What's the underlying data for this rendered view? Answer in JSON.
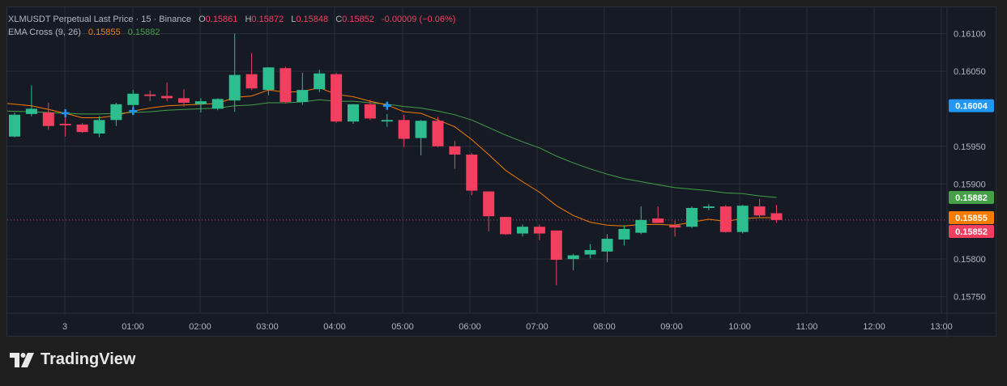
{
  "legend": {
    "symbol_line": "XLMUSDT Perpetual Last Price · 15 · Binance",
    "o_label": "O",
    "o_value": "0.15861",
    "h_label": "H",
    "h_value": "0.15872",
    "l_label": "L",
    "l_value": "0.15848",
    "c_label": "C",
    "c_value": "0.15852",
    "change": "-0.00009 (−0.06%)",
    "ema_label": "EMA Cross (9, 26)",
    "ema_fast_value": "0.15855",
    "ema_slow_value": "0.15882"
  },
  "brand": {
    "name": "TradingView"
  },
  "colors": {
    "up": "#26a69a",
    "up_body": "#2dbd8f",
    "down": "#f23f5f",
    "ema_fast": "#f57c00",
    "ema_slow": "#43a047",
    "last_price_badge": "#2196f3",
    "grid": "#2a2e39",
    "text": "#b2b5be"
  },
  "chart_data": {
    "type": "candlestick",
    "symbol": "XLMUSDT Perpetual",
    "interval": "15",
    "exchange": "Binance",
    "ylim": [
      0.15728,
      0.16135
    ],
    "y_ticks": [
      "0.16100",
      "0.16050",
      "0.15950",
      "0.15900",
      "0.15800",
      "0.15750"
    ],
    "x_ticks": [
      "3",
      "01:00",
      "02:00",
      "03:00",
      "04:00",
      "05:00",
      "06:00",
      "07:00",
      "08:00",
      "09:00",
      "10:00",
      "11:00",
      "12:00",
      "13:00"
    ],
    "price_badges": [
      {
        "label": "0.16004",
        "value": 0.16004,
        "color": "#2196f3"
      },
      {
        "label": "0.15882",
        "value": 0.15882,
        "color": "#43a047"
      },
      {
        "label": "0.15855",
        "value": 0.15855,
        "color": "#f57c00"
      },
      {
        "label": "0.15852",
        "value": 0.15852,
        "color": "#f23f5f"
      }
    ],
    "last_price": 0.15852,
    "candles": [
      {
        "o": 0.15963,
        "h": 0.15995,
        "l": 0.15962,
        "c": 0.15992
      },
      {
        "o": 0.15993,
        "h": 0.16031,
        "l": 0.1599,
        "c": 0.16
      },
      {
        "o": 0.15995,
        "h": 0.16008,
        "l": 0.15972,
        "c": 0.15977
      },
      {
        "o": 0.1598,
        "h": 0.15994,
        "l": 0.15963,
        "c": 0.15978
      },
      {
        "o": 0.15979,
        "h": 0.15981,
        "l": 0.15968,
        "c": 0.15969
      },
      {
        "o": 0.15967,
        "h": 0.1599,
        "l": 0.15962,
        "c": 0.15985
      },
      {
        "o": 0.15985,
        "h": 0.16008,
        "l": 0.15977,
        "c": 0.16006
      },
      {
        "o": 0.16005,
        "h": 0.16025,
        "l": 0.16,
        "c": 0.1602
      },
      {
        "o": 0.16019,
        "h": 0.16024,
        "l": 0.1601,
        "c": 0.16017
      },
      {
        "o": 0.16017,
        "h": 0.16035,
        "l": 0.1601,
        "c": 0.16014
      },
      {
        "o": 0.16014,
        "h": 0.16026,
        "l": 0.16003,
        "c": 0.16008
      },
      {
        "o": 0.16006,
        "h": 0.16014,
        "l": 0.15995,
        "c": 0.1601
      },
      {
        "o": 0.16,
        "h": 0.16014,
        "l": 0.15998,
        "c": 0.16013
      },
      {
        "o": 0.16011,
        "h": 0.161,
        "l": 0.15996,
        "c": 0.16045
      },
      {
        "o": 0.16046,
        "h": 0.16074,
        "l": 0.16025,
        "c": 0.16027
      },
      {
        "o": 0.16025,
        "h": 0.16055,
        "l": 0.16018,
        "c": 0.16055
      },
      {
        "o": 0.16054,
        "h": 0.16056,
        "l": 0.16007,
        "c": 0.16009
      },
      {
        "o": 0.16009,
        "h": 0.16048,
        "l": 0.16005,
        "c": 0.16025
      },
      {
        "o": 0.16026,
        "h": 0.16052,
        "l": 0.16022,
        "c": 0.16047
      },
      {
        "o": 0.16046,
        "h": 0.16048,
        "l": 0.15981,
        "c": 0.15983
      },
      {
        "o": 0.15983,
        "h": 0.16006,
        "l": 0.1598,
        "c": 0.16006
      },
      {
        "o": 0.16006,
        "h": 0.16012,
        "l": 0.15985,
        "c": 0.15987
      },
      {
        "o": 0.15983,
        "h": 0.15993,
        "l": 0.15976,
        "c": 0.15985
      },
      {
        "o": 0.15985,
        "h": 0.15992,
        "l": 0.15949,
        "c": 0.1596
      },
      {
        "o": 0.15961,
        "h": 0.15985,
        "l": 0.15938,
        "c": 0.15984
      },
      {
        "o": 0.15984,
        "h": 0.15989,
        "l": 0.15949,
        "c": 0.1595
      },
      {
        "o": 0.1595,
        "h": 0.15957,
        "l": 0.1592,
        "c": 0.15939
      },
      {
        "o": 0.15939,
        "h": 0.15941,
        "l": 0.15885,
        "c": 0.15891
      },
      {
        "o": 0.1589,
        "h": 0.1589,
        "l": 0.15837,
        "c": 0.15857
      },
      {
        "o": 0.15856,
        "h": 0.15856,
        "l": 0.15832,
        "c": 0.15833
      },
      {
        "o": 0.15834,
        "h": 0.15846,
        "l": 0.1583,
        "c": 0.15843
      },
      {
        "o": 0.15843,
        "h": 0.15846,
        "l": 0.15825,
        "c": 0.15834
      },
      {
        "o": 0.15838,
        "h": 0.15838,
        "l": 0.15765,
        "c": 0.15799
      },
      {
        "o": 0.158,
        "h": 0.15807,
        "l": 0.15785,
        "c": 0.15805
      },
      {
        "o": 0.15806,
        "h": 0.1582,
        "l": 0.15801,
        "c": 0.15812
      },
      {
        "o": 0.1581,
        "h": 0.15833,
        "l": 0.15796,
        "c": 0.15827
      },
      {
        "o": 0.15826,
        "h": 0.15845,
        "l": 0.15818,
        "c": 0.1584
      },
      {
        "o": 0.15835,
        "h": 0.1587,
        "l": 0.15833,
        "c": 0.15852
      },
      {
        "o": 0.15854,
        "h": 0.1587,
        "l": 0.15848,
        "c": 0.15848
      },
      {
        "o": 0.15845,
        "h": 0.15851,
        "l": 0.1583,
        "c": 0.15842
      },
      {
        "o": 0.15843,
        "h": 0.1587,
        "l": 0.15841,
        "c": 0.15868
      },
      {
        "o": 0.15868,
        "h": 0.15873,
        "l": 0.15865,
        "c": 0.1587
      },
      {
        "o": 0.1587,
        "h": 0.15872,
        "l": 0.15835,
        "c": 0.15836
      },
      {
        "o": 0.15836,
        "h": 0.15872,
        "l": 0.15834,
        "c": 0.15871
      },
      {
        "o": 0.1587,
        "h": 0.1588,
        "l": 0.15855,
        "c": 0.15858
      },
      {
        "o": 0.15861,
        "h": 0.15872,
        "l": 0.15848,
        "c": 0.15852
      }
    ],
    "ema_fast": [
      0.16007,
      0.16004,
      0.15999,
      0.15994,
      0.15988,
      0.15988,
      0.15991,
      0.15997,
      0.16001,
      0.16004,
      0.16005,
      0.16006,
      0.16007,
      0.16015,
      0.16017,
      0.16025,
      0.16022,
      0.16023,
      0.16028,
      0.16019,
      0.16016,
      0.1601,
      0.16005,
      0.15996,
      0.15994,
      0.15985,
      0.15976,
      0.15959,
      0.15939,
      0.15918,
      0.15903,
      0.15889,
      0.15871,
      0.15858,
      0.15849,
      0.15845,
      0.15844,
      0.15846,
      0.15846,
      0.15845,
      0.15849,
      0.15853,
      0.1585,
      0.15854,
      0.15855,
      0.15855
    ],
    "ema_slow": [
      0.15997,
      0.15996,
      0.15995,
      0.15994,
      0.15993,
      0.15993,
      0.15994,
      0.15995,
      0.15996,
      0.15998,
      0.15999,
      0.16,
      0.16001,
      0.16004,
      0.16005,
      0.16008,
      0.16008,
      0.16009,
      0.16012,
      0.1601,
      0.1601,
      0.16008,
      0.16006,
      0.16003,
      0.16001,
      0.15997,
      0.15992,
      0.15985,
      0.15975,
      0.15965,
      0.15956,
      0.15948,
      0.15937,
      0.15928,
      0.1592,
      0.15913,
      0.15907,
      0.15903,
      0.15899,
      0.15895,
      0.15893,
      0.15891,
      0.15888,
      0.15887,
      0.15884,
      0.15882
    ],
    "cross_markers": [
      {
        "index": 3,
        "value": 0.15994
      },
      {
        "index": 7,
        "value": 0.15997
      },
      {
        "index": 22,
        "value": 0.16004
      }
    ]
  }
}
